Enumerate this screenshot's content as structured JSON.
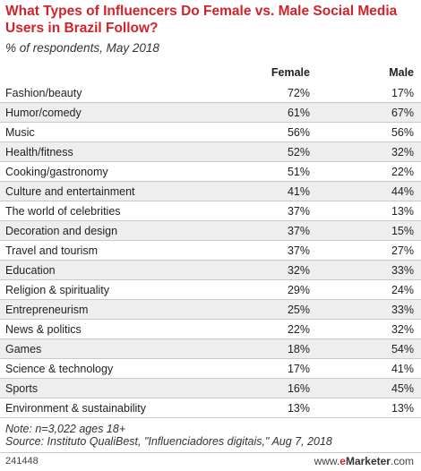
{
  "chart_data": {
    "type": "table",
    "title": "What Types of Influencers Do Female vs. Male Social Media Users in Brazil Follow?",
    "subtitle": "% of respondents, May 2018",
    "columns": [
      "Female",
      "Male"
    ],
    "rows": [
      {
        "label": "Fashion/beauty",
        "female": "72%",
        "male": "17%"
      },
      {
        "label": "Humor/comedy",
        "female": "61%",
        "male": "67%"
      },
      {
        "label": "Music",
        "female": "56%",
        "male": "56%"
      },
      {
        "label": "Health/fitness",
        "female": "52%",
        "male": "32%"
      },
      {
        "label": "Cooking/gastronomy",
        "female": "51%",
        "male": "22%"
      },
      {
        "label": "Culture and entertainment",
        "female": "41%",
        "male": "44%"
      },
      {
        "label": "The world of celebrities",
        "female": "37%",
        "male": "13%"
      },
      {
        "label": "Decoration and design",
        "female": "37%",
        "male": "15%"
      },
      {
        "label": "Travel and tourism",
        "female": "37%",
        "male": "27%"
      },
      {
        "label": "Education",
        "female": "32%",
        "male": "33%"
      },
      {
        "label": "Religion & spirituality",
        "female": "29%",
        "male": "24%"
      },
      {
        "label": "Entrepreneurism",
        "female": "25%",
        "male": "33%"
      },
      {
        "label": "News & politics",
        "female": "22%",
        "male": "32%"
      },
      {
        "label": "Games",
        "female": "18%",
        "male": "54%"
      },
      {
        "label": "Science & technology",
        "female": "17%",
        "male": "41%"
      },
      {
        "label": "Sports",
        "female": "16%",
        "male": "45%"
      },
      {
        "label": "Environment & sustainability",
        "female": "13%",
        "male": "13%"
      }
    ],
    "note": "Note: n=3,022 ages 18+",
    "source": "Source: Instituto QualiBest, \"Influenciadores digitais,\" Aug 7, 2018"
  },
  "footer": {
    "chart_id": "241448",
    "brand_prefix": "www.",
    "brand_e": "e",
    "brand_rest": "Marketer",
    "brand_suffix": ".com"
  },
  "colors": {
    "title": "#d2232a",
    "row_alt": "#eeeeee"
  }
}
